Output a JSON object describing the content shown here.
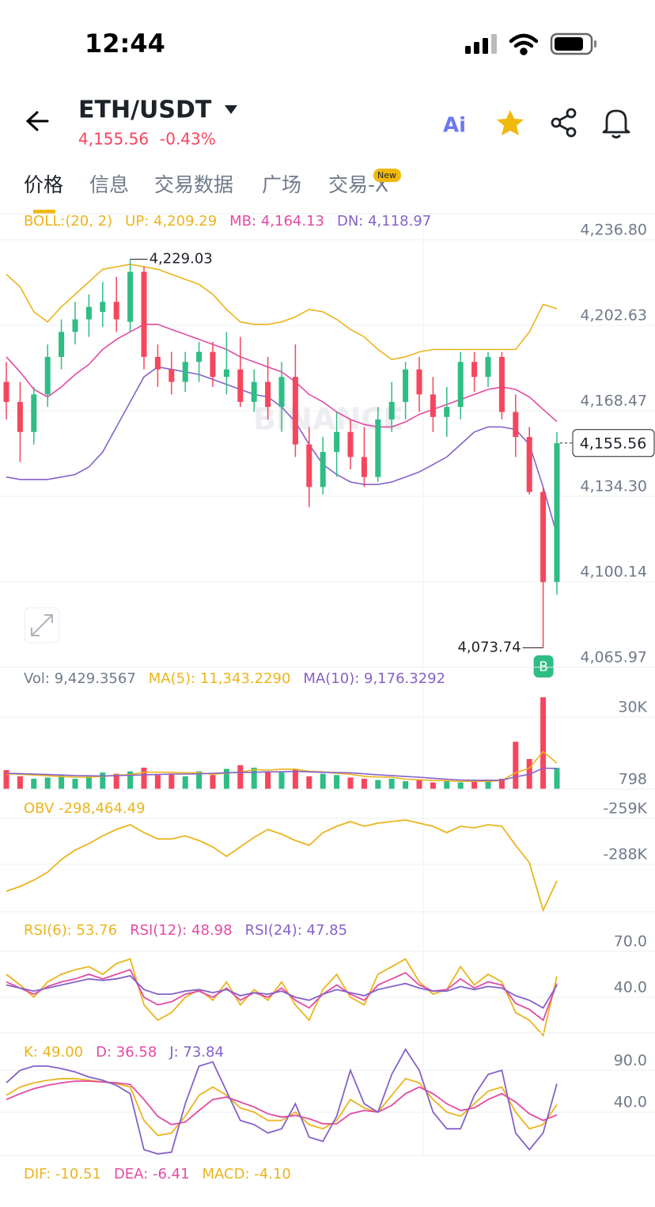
{
  "status_bar": {
    "time": "12:44"
  },
  "header": {
    "pair": "ETH/USDT",
    "price": "4,155.56",
    "change": "-0.43%",
    "ai": "Ai"
  },
  "tabs": [
    "价格",
    "信息",
    "交易数据",
    "广场",
    "交易-X"
  ],
  "new_badge": "New",
  "chart_data": [
    {
      "type": "candlestick",
      "indicator": "BOLL:(20, 2)",
      "indicator_color": "#ecb41c",
      "watermark": "BINANCE",
      "up_color": "#2ebd85",
      "down_color": "#f6465d",
      "open": [
        4180,
        4172,
        4160,
        4175,
        4190,
        4200,
        4205,
        4208,
        4212,
        4204,
        4224,
        4190,
        4185,
        4180,
        4188,
        4192,
        4182,
        4185,
        4172,
        4180,
        4170,
        4182,
        4155,
        4138,
        4152,
        4160,
        4150,
        4142,
        4165,
        4172,
        4185,
        4175,
        4166,
        4170,
        4188,
        4182,
        4190,
        4168,
        4158,
        4136,
        4100
      ],
      "high": [
        4188,
        4180,
        4178,
        4195,
        4205,
        4212,
        4215,
        4220,
        4222,
        4229.03,
        4226,
        4195,
        4192,
        4192,
        4196,
        4196,
        4200,
        4198,
        4185,
        4190,
        4188,
        4195,
        4162,
        4158,
        4168,
        4165,
        4162,
        4170,
        4180,
        4188,
        4190,
        4182,
        4178,
        4192,
        4192,
        4192,
        4192,
        4175,
        4162,
        4138,
        4160
      ],
      "low": [
        4165,
        4148,
        4155,
        4170,
        4185,
        4195,
        4198,
        4202,
        4200,
        4200,
        4185,
        4178,
        4175,
        4176,
        4180,
        4178,
        4175,
        4170,
        4168,
        4165,
        4160,
        4150,
        4130,
        4135,
        4142,
        4145,
        4138,
        4140,
        4160,
        4165,
        4168,
        4160,
        4158,
        4165,
        4176,
        4178,
        4165,
        4150,
        4135,
        4073.74,
        4095
      ],
      "close": [
        4172,
        4160,
        4175,
        4190,
        4200,
        4205,
        4210,
        4212,
        4205,
        4224,
        4190,
        4185,
        4180,
        4188,
        4192,
        4182,
        4185,
        4172,
        4180,
        4170,
        4182,
        4155,
        4138,
        4152,
        4160,
        4150,
        4142,
        4165,
        4172,
        4185,
        4175,
        4166,
        4170,
        4188,
        4182,
        4190,
        4168,
        4158,
        4136,
        4100,
        4155.56
      ],
      "series": [
        {
          "name": "UP: 4,209.29",
          "color": "#ecb41c",
          "values": [
            4223,
            4218,
            4208,
            4204,
            4210,
            4215,
            4220,
            4225,
            4226,
            4227,
            4226,
            4225,
            4223,
            4221,
            4219,
            4215,
            4209,
            4204,
            4203,
            4203,
            4204,
            4206,
            4209,
            4208,
            4205,
            4201,
            4198,
            4193,
            4189,
            4190,
            4192,
            4193,
            4193,
            4193,
            4193,
            4193,
            4193,
            4193,
            4200,
            4211,
            4209.29
          ]
        },
        {
          "name": "MB: 4,164.13",
          "color": "#e24ba4",
          "values": [
            4190,
            4184,
            4177,
            4174,
            4178,
            4183,
            4187,
            4193,
            4197,
            4200,
            4203,
            4203,
            4201,
            4199,
            4197,
            4195,
            4193,
            4190,
            4188,
            4186,
            4184,
            4180,
            4175,
            4172,
            4168,
            4165,
            4163,
            4162,
            4162,
            4164,
            4167,
            4169,
            4171,
            4173,
            4175,
            4177,
            4178,
            4177,
            4174,
            4169,
            4164.13
          ]
        },
        {
          "name": "DN: 4,118.97",
          "color": "#8562c9",
          "values": [
            4142,
            4141,
            4141,
            4141,
            4142,
            4143,
            4146,
            4152,
            4162,
            4172,
            4182,
            4186,
            4185,
            4184,
            4183,
            4181,
            4179,
            4177,
            4175,
            4174,
            4170,
            4164,
            4155,
            4147,
            4143,
            4140,
            4139,
            4139,
            4140,
            4142,
            4144,
            4147,
            4150,
            4155,
            4160,
            4162,
            4162,
            4161,
            4155,
            4138,
            4118.97
          ]
        }
      ],
      "ylim": [
        4065.97,
        4236.8
      ],
      "yticks": [
        {
          "value": 4236.8,
          "label": "4,236.80"
        },
        {
          "value": 4202.63,
          "label": "4,202.63"
        },
        {
          "value": 4168.47,
          "label": "4,168.47"
        },
        {
          "value": 4134.3,
          "label": "4,134.30"
        },
        {
          "value": 4100.14,
          "label": "4,100.14"
        },
        {
          "value": 4065.97,
          "label": "4,065.97"
        }
      ],
      "high_label": {
        "value": 4229.03,
        "label": "4,229.03"
      },
      "low_label": {
        "value": 4073.74,
        "label": "4,073.74"
      },
      "last_price": {
        "value": 4155.56,
        "label": "4,155.56"
      },
      "marker": "B",
      "grid": true
    },
    {
      "type": "bar",
      "title": "Vol: 9,429.3567",
      "up_color": "#2ebd85",
      "down_color": "#f6465d",
      "values": [
        8500,
        6000,
        5000,
        5500,
        6500,
        5000,
        6000,
        7500,
        7000,
        8000,
        9500,
        6500,
        7000,
        6000,
        8000,
        6500,
        9000,
        10500,
        9500,
        8000,
        7500,
        9000,
        6000,
        7000,
        6500,
        5500,
        5000,
        4500,
        5000,
        4000,
        4500,
        3500,
        4000,
        3500,
        4500,
        4000,
        5000,
        20000,
        13000,
        38000,
        9429.3567
      ],
      "series": [
        {
          "name": "MA(5): 11,343.2290",
          "color": "#ecb41c",
          "values": [
            7000,
            6800,
            6500,
            6200,
            5900,
            5600,
            5600,
            6000,
            6400,
            6700,
            7600,
            7700,
            7600,
            7400,
            7400,
            6800,
            7300,
            7600,
            8700,
            8500,
            8900,
            8900,
            8000,
            7800,
            7200,
            6800,
            6000,
            5700,
            5600,
            4800,
            4600,
            4300,
            4200,
            3900,
            4000,
            3900,
            4300,
            7400,
            9300,
            16000,
            11343.229
          ]
        },
        {
          "name": "MA(10): 9,176.3292",
          "color": "#8562c9",
          "values": [
            7200,
            7100,
            6900,
            6700,
            6500,
            6300,
            6200,
            6100,
            6300,
            6400,
            6600,
            6700,
            6900,
            6900,
            7000,
            7200,
            7400,
            7600,
            7600,
            7800,
            7800,
            8000,
            7800,
            7600,
            7500,
            7400,
            7000,
            6600,
            6300,
            5900,
            5600,
            5200,
            4800,
            4500,
            4400,
            4400,
            4400,
            5800,
            6800,
            9300,
            9176.3292
          ]
        }
      ],
      "ylim": [
        798,
        49575
      ],
      "yticks": [
        {
          "value": 30000,
          "label": "30K"
        },
        798
      ],
      "grid": true
    },
    {
      "type": "line",
      "series": [
        {
          "name": "OBV -298,464.49",
          "color": "#ecb41c",
          "values": [
            -305000,
            -302000,
            -298000,
            -293000,
            -285000,
            -279000,
            -275000,
            -270000,
            -266000,
            -263000,
            -268000,
            -272000,
            -272000,
            -270000,
            -273000,
            -277000,
            -283000,
            -277000,
            -271000,
            -266000,
            -269000,
            -273000,
            -276000,
            -268000,
            -264000,
            -261000,
            -264000,
            -262000,
            -261000,
            -260000,
            -262000,
            -264000,
            -268000,
            -264000,
            -265000,
            -263000,
            -264000,
            -276000,
            -287000,
            -317000,
            -298464.49
          ]
        }
      ],
      "ylim": [
        -318000,
        -242000
      ],
      "yticks": [
        {
          "value": -259000,
          "label": "-259K"
        },
        {
          "value": -288000,
          "label": "-288K"
        }
      ],
      "grid": true
    },
    {
      "type": "line",
      "series": [
        {
          "name": "RSI(6): 53.76",
          "color": "#ecb41c",
          "values": [
            55,
            48,
            40,
            50,
            55,
            58,
            60,
            55,
            62,
            65,
            35,
            25,
            30,
            40,
            45,
            38,
            50,
            35,
            45,
            38,
            50,
            35,
            25,
            45,
            55,
            40,
            35,
            55,
            60,
            65,
            50,
            42,
            45,
            60,
            48,
            55,
            50,
            30,
            25,
            15,
            53.76
          ]
        },
        {
          "name": "RSI(12): 48.98",
          "color": "#e24ba4",
          "values": [
            50,
            46,
            42,
            47,
            50,
            52,
            55,
            52,
            55,
            58,
            40,
            35,
            37,
            42,
            44,
            40,
            46,
            38,
            43,
            40,
            46,
            38,
            33,
            42,
            48,
            42,
            38,
            48,
            52,
            56,
            48,
            44,
            45,
            52,
            46,
            50,
            48,
            36,
            32,
            25,
            48.98
          ]
        },
        {
          "name": "RSI(24): 47.85",
          "color": "#8562c9",
          "values": [
            48,
            46,
            44,
            46,
            48,
            50,
            52,
            51,
            52,
            54,
            45,
            42,
            42,
            44,
            45,
            43,
            45,
            41,
            43,
            42,
            44,
            40,
            38,
            42,
            45,
            43,
            41,
            45,
            47,
            49,
            46,
            44,
            44,
            47,
            45,
            47,
            46,
            41,
            38,
            33,
            47.85
          ]
        }
      ],
      "ylim": [
        16.7,
        94.3
      ],
      "yticks": [
        {
          "value": 70,
          "label": "70.0"
        },
        {
          "value": 40,
          "label": "40.0"
        }
      ],
      "grid": true
    },
    {
      "type": "line",
      "series": [
        {
          "name": "K: 49.00",
          "color": "#ecb41c",
          "values": [
            60,
            70,
            75,
            78,
            80,
            80,
            78,
            76,
            74,
            70,
            30,
            12,
            15,
            35,
            60,
            70,
            60,
            45,
            40,
            30,
            30,
            40,
            25,
            20,
            30,
            55,
            45,
            40,
            60,
            80,
            75,
            55,
            40,
            35,
            50,
            65,
            70,
            40,
            20,
            25,
            49
          ]
        },
        {
          "name": "D: 36.58",
          "color": "#e24ba4",
          "values": [
            55,
            62,
            68,
            72,
            75,
            77,
            77,
            76,
            75,
            73,
            55,
            35,
            25,
            28,
            42,
            55,
            58,
            52,
            46,
            38,
            34,
            36,
            32,
            26,
            26,
            38,
            42,
            40,
            48,
            62,
            70,
            62,
            50,
            42,
            45,
            55,
            62,
            52,
            38,
            30,
            36.58
          ]
        },
        {
          "name": "J: 73.84",
          "color": "#8562c9",
          "values": [
            75,
            90,
            95,
            95,
            92,
            88,
            82,
            78,
            72,
            62,
            -5,
            -10,
            -8,
            50,
            95,
            100,
            65,
            30,
            25,
            15,
            20,
            50,
            10,
            5,
            35,
            90,
            50,
            40,
            85,
            115,
            90,
            40,
            20,
            20,
            60,
            85,
            90,
            15,
            -5,
            15,
            73.84
          ]
        }
      ],
      "ylim": [
        -12,
        130
      ],
      "yticks": [
        {
          "value": 90,
          "label": "90.0"
        },
        {
          "value": 40,
          "label": "40.0"
        }
      ],
      "grid": true
    },
    {
      "type": "legend",
      "legend": [
        {
          "text": "DIF: -10.51",
          "color": "#ecb41c"
        },
        {
          "text": "DEA: -6.41",
          "color": "#e24ba4"
        },
        {
          "text": "MACD: -4.10",
          "color": "#ecb41c"
        }
      ]
    }
  ]
}
